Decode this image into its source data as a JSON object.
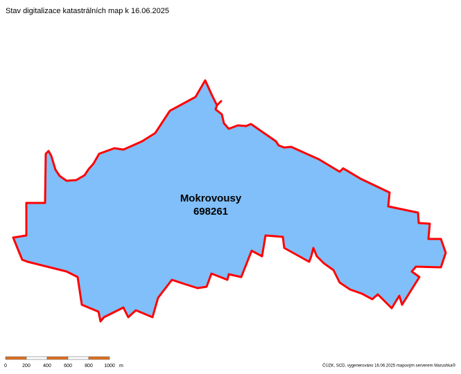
{
  "header": {
    "title": "Stav digitalizace katastrálních map k 16.06.2025"
  },
  "parcel": {
    "name": "Mokrovousy",
    "code": "698261"
  },
  "scale_bar": {
    "ticks": [
      "0",
      "200",
      "400",
      "600",
      "800",
      "1000"
    ],
    "unit": "m"
  },
  "footer": {
    "attribution": "ČÚZK, SCD, vygenerováno 16.06.2025 mapovým serverem Marushka®"
  }
}
